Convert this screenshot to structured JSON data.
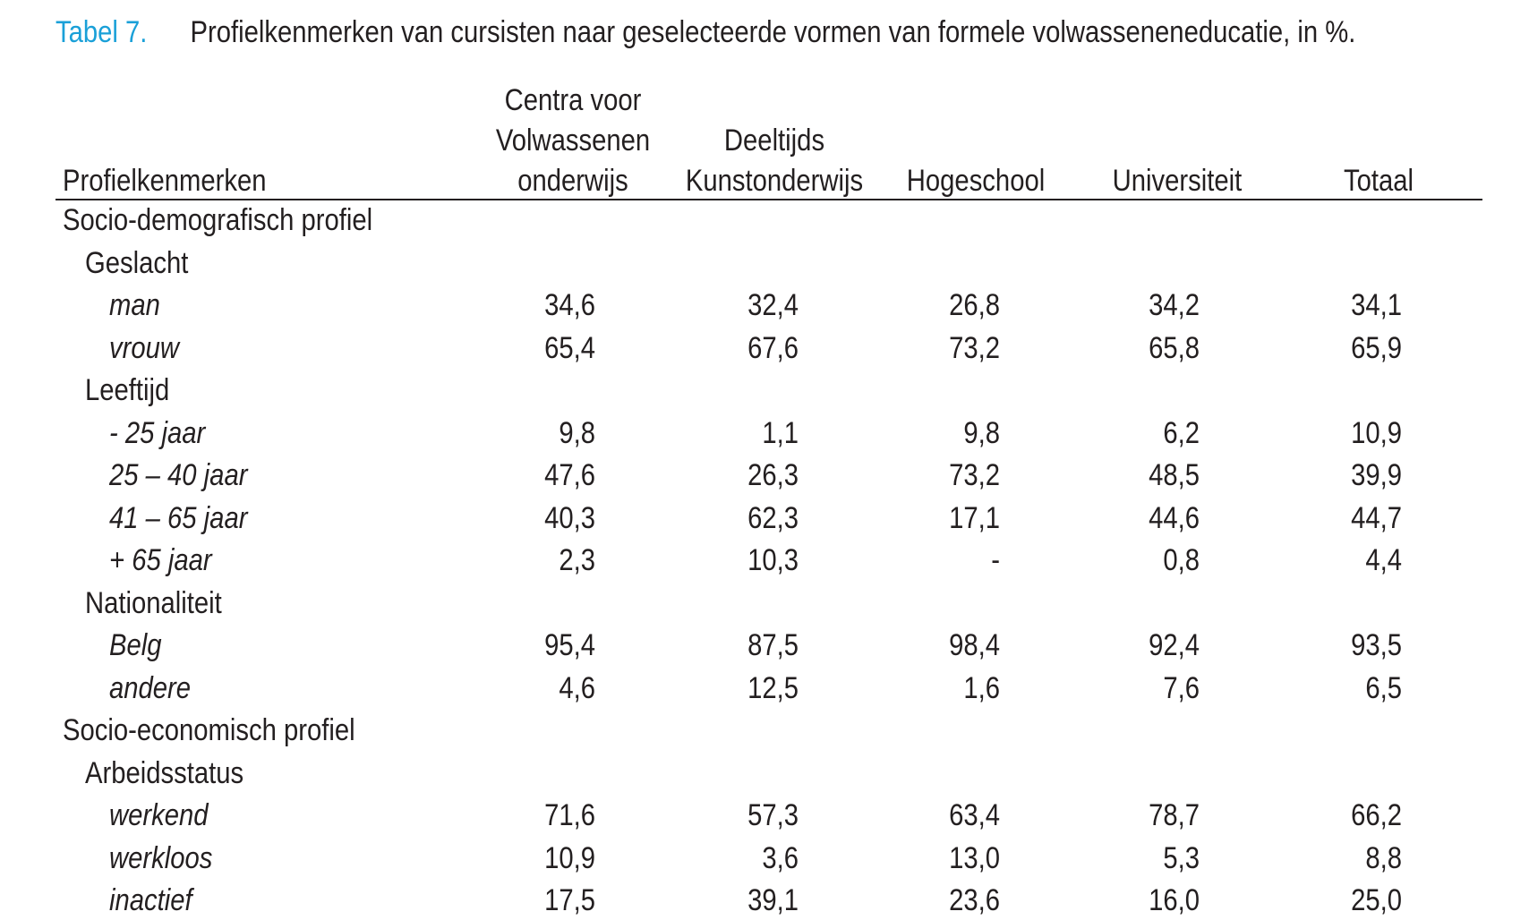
{
  "caption": {
    "label": "Tabel 7.",
    "title": "Profielkenmerken van cursisten naar geselecteerde vormen van formele volwasseneneducatie, in %."
  },
  "columns": {
    "rowlabel": "Profielkenmerken",
    "cvo": [
      "Centra voor",
      "Volwassenen",
      "onderwijs"
    ],
    "dko": [
      "Deeltijds",
      "Kunstonderwijs"
    ],
    "hs": "Hogeschool",
    "univ": "Universiteit",
    "totaal": "Totaal"
  },
  "sections": [
    {
      "title": "Socio-demografisch profiel",
      "groups": [
        {
          "title": "Geslacht",
          "rows": [
            {
              "label": "man",
              "values": [
                "34,6",
                "32,4",
                "26,8",
                "34,2",
                "34,1"
              ]
            },
            {
              "label": "vrouw",
              "values": [
                "65,4",
                "67,6",
                "73,2",
                "65,8",
                "65,9"
              ]
            }
          ]
        },
        {
          "title": "Leeftijd",
          "rows": [
            {
              "label": "- 25 jaar",
              "values": [
                "9,8",
                "1,1",
                "9,8",
                "6,2",
                "10,9"
              ]
            },
            {
              "label": "25 – 40 jaar",
              "values": [
                "47,6",
                "26,3",
                "73,2",
                "48,5",
                "39,9"
              ]
            },
            {
              "label": "41 – 65 jaar",
              "values": [
                "40,3",
                "62,3",
                "17,1",
                "44,6",
                "44,7"
              ]
            },
            {
              "label": "+ 65 jaar",
              "values": [
                "2,3",
                "10,3",
                "-",
                "0,8",
                "4,4"
              ]
            }
          ]
        },
        {
          "title": "Nationaliteit",
          "rows": [
            {
              "label": "Belg",
              "values": [
                "95,4",
                "87,5",
                "98,4",
                "92,4",
                "93,5"
              ]
            },
            {
              "label": "andere",
              "values": [
                "4,6",
                "12,5",
                "1,6",
                "7,6",
                "6,5"
              ]
            }
          ]
        }
      ]
    },
    {
      "title": "Socio-economisch profiel",
      "groups": [
        {
          "title": "Arbeidsstatus",
          "rows": [
            {
              "label": "werkend",
              "values": [
                "71,6",
                "57,3",
                "63,4",
                "78,7",
                "66,2"
              ]
            },
            {
              "label": "werkloos",
              "values": [
                "10,9",
                "3,6",
                "13,0",
                "5,3",
                "8,8"
              ]
            },
            {
              "label": "inactief",
              "values": [
                "17,5",
                "39,1",
                "23,6",
                "16,0",
                "25,0"
              ]
            }
          ]
        }
      ]
    }
  ]
}
